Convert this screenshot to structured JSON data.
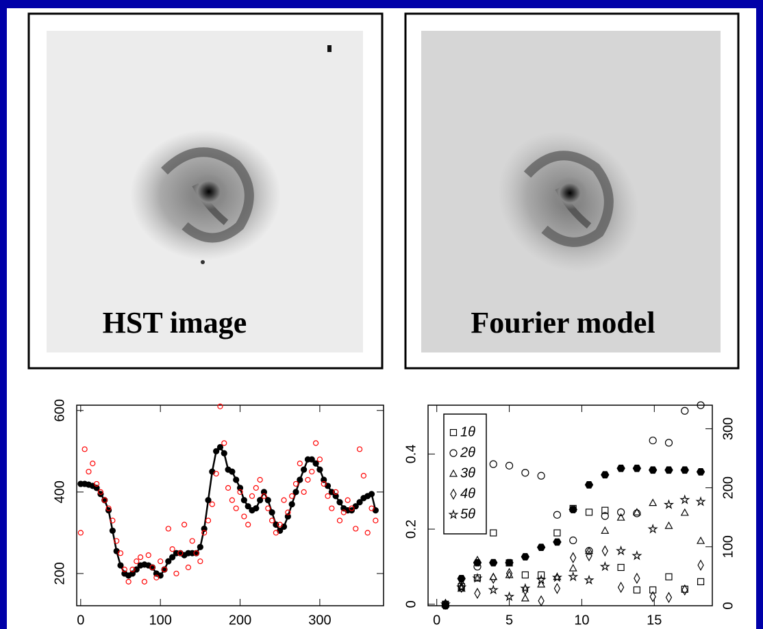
{
  "images": [
    {
      "label": "HST image"
    },
    {
      "label": "Fourier model"
    }
  ],
  "chart_data": [
    {
      "type": "line",
      "x": [
        0,
        5,
        10,
        15,
        20,
        25,
        30,
        35,
        40,
        45,
        50,
        55,
        60,
        65,
        70,
        75,
        80,
        85,
        90,
        95,
        100,
        105,
        110,
        115,
        120,
        125,
        130,
        135,
        140,
        145,
        150,
        155,
        160,
        165,
        170,
        175,
        180,
        185,
        190,
        195,
        200,
        205,
        210,
        215,
        220,
        225,
        230,
        235,
        240,
        245,
        250,
        255,
        260,
        265,
        270,
        275,
        280,
        285,
        290,
        295,
        300,
        305,
        310,
        315,
        320,
        325,
        330,
        335,
        340,
        345,
        350,
        355,
        360,
        365,
        370
      ],
      "series": [
        {
          "color": "#000000",
          "marker": "filled-circle",
          "line": true,
          "values": [
            420,
            420,
            418,
            415,
            410,
            395,
            380,
            355,
            305,
            255,
            220,
            200,
            195,
            200,
            210,
            220,
            222,
            220,
            215,
            200,
            195,
            210,
            230,
            240,
            250,
            250,
            245,
            250,
            250,
            250,
            265,
            310,
            380,
            450,
            500,
            510,
            495,
            455,
            450,
            430,
            410,
            380,
            365,
            355,
            360,
            380,
            400,
            380,
            350,
            320,
            305,
            315,
            340,
            370,
            400,
            430,
            455,
            480,
            480,
            470,
            455,
            430,
            415,
            400,
            390,
            375,
            360,
            355,
            355,
            365,
            375,
            385,
            390,
            395,
            355
          ]
        },
        {
          "color": "#ff0000",
          "marker": "open-circle",
          "line": false,
          "values": [
            300,
            505,
            450,
            470,
            420,
            400,
            380,
            360,
            330,
            280,
            250,
            210,
            180,
            210,
            230,
            240,
            180,
            245,
            215,
            190,
            230,
            210,
            310,
            260,
            200,
            250,
            320,
            215,
            280,
            250,
            230,
            300,
            330,
            370,
            445,
            610,
            520,
            410,
            380,
            360,
            400,
            340,
            320,
            390,
            410,
            430,
            390,
            360,
            330,
            300,
            320,
            380,
            350,
            390,
            420,
            470,
            400,
            430,
            450,
            520,
            480,
            420,
            390,
            360,
            400,
            330,
            350,
            380,
            360,
            310,
            505,
            440,
            300,
            360,
            330
          ]
        }
      ],
      "xlim": [
        -5,
        380
      ],
      "ylim": [
        121,
        613
      ],
      "xticks": [
        0,
        100,
        200,
        300
      ],
      "yticks": [
        200,
        400,
        600
      ]
    },
    {
      "type": "scatter",
      "x": [
        0.6,
        1.7,
        2.8,
        3.9,
        5.0,
        6.1,
        7.2,
        8.3,
        9.4,
        10.5,
        11.6,
        12.7,
        13.8,
        14.9,
        16.0,
        17.1,
        18.2
      ],
      "series": [
        {
          "name": "1θ",
          "marker": "square",
          "color": "#000000",
          "values": [
            0,
            0.047,
            0.07,
            0.19,
            0.11,
            0.078,
            0.078,
            0.19,
            0.255,
            0.245,
            0.25,
            0.098,
            0.038,
            0.038,
            0.073,
            0.04,
            0.06
          ]
        },
        {
          "name": "2θ",
          "marker": "circle",
          "color": "#000000",
          "values": [
            0,
            0.05,
            0.1,
            0.373,
            0.369,
            0.35,
            0.342,
            0.238,
            0.17,
            0.142,
            0.235,
            0.245,
            0.242,
            0.436,
            0.43,
            0.515,
            0.53
          ]
        },
        {
          "name": "3θ",
          "marker": "triangle",
          "color": "#000000",
          "values": [
            0,
            0.042,
            0.118,
            0.073,
            0.078,
            0.016,
            0.053,
            0.073,
            0.096,
            0.142,
            0.196,
            0.231,
            0.245,
            0.27,
            0.209,
            0.244,
            0.169
          ]
        },
        {
          "name": "4θ",
          "marker": "diamond",
          "color": "#000000",
          "values": [
            0,
            0.045,
            0.029,
            0.069,
            0.082,
            0.038,
            0.009,
            0.042,
            0.124,
            0.129,
            0.142,
            0.045,
            0.069,
            0.02,
            0.018,
            0.038,
            0.104
          ]
        },
        {
          "name": "5θ",
          "marker": "star",
          "color": "#000000",
          "values": [
            0,
            0.045,
            0.069,
            0.038,
            0.02,
            0.042,
            0.065,
            0.071,
            0.073,
            0.064,
            0.1,
            0.142,
            0.129,
            0.2,
            0.265,
            0.278,
            0.273
          ]
        },
        {
          "marker": "filled-hexagon",
          "color": "#000000",
          "axis": "y2",
          "values": [
            0,
            46,
            73,
            73,
            73,
            83,
            99,
            108,
            163,
            205,
            222,
            233,
            233,
            230,
            230,
            230,
            227
          ]
        }
      ],
      "xlim": [
        -0.6,
        19
      ],
      "ylim": [
        -0.004,
        0.53
      ],
      "y2lim": [
        0,
        340
      ],
      "xticks": [
        0,
        5,
        10,
        15
      ],
      "yticks": [
        0,
        0.2,
        0.4
      ],
      "y2ticks": [
        0,
        100,
        200,
        300
      ],
      "legend": "upper left"
    }
  ]
}
